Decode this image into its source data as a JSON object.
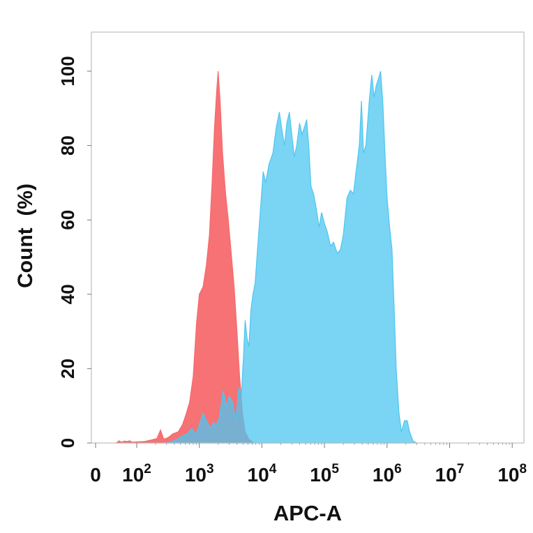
{
  "chart_data": {
    "type": "area",
    "title": "",
    "xlabel": "APC-A",
    "ylabel": "Count  (%)",
    "x_scale": "log",
    "xlim": [
      0,
      100000000
    ],
    "ylim": [
      0,
      110
    ],
    "grid": false,
    "legend": "none",
    "x_ticks": [
      {
        "value": 0,
        "label": "0",
        "exp": ""
      },
      {
        "value": 100,
        "label": "10",
        "exp": "2"
      },
      {
        "value": 1000,
        "label": "10",
        "exp": "3"
      },
      {
        "value": 10000,
        "label": "10",
        "exp": "4"
      },
      {
        "value": 100000,
        "label": "10",
        "exp": "5"
      },
      {
        "value": 1000000,
        "label": "10",
        "exp": "6"
      },
      {
        "value": 10000000,
        "label": "10",
        "exp": "7"
      },
      {
        "value": 100000000,
        "label": "10",
        "exp": "8"
      }
    ],
    "y_ticks": [
      0,
      20,
      40,
      60,
      80,
      100
    ],
    "series": [
      {
        "color": "#f56a6e",
        "fill_opacity": 0.95,
        "points": [
          [
            10,
            0
          ],
          [
            14,
            0.6
          ],
          [
            18,
            0.2
          ],
          [
            25,
            0.5
          ],
          [
            35,
            0.4
          ],
          [
            45,
            0.6
          ],
          [
            60,
            0.2
          ],
          [
            90,
            0.3
          ],
          [
            130,
            0.4
          ],
          [
            170,
            0.8
          ],
          [
            210,
            1.2
          ],
          [
            240,
            3.5
          ],
          [
            270,
            1.0
          ],
          [
            320,
            1.5
          ],
          [
            380,
            2.5
          ],
          [
            460,
            3.0
          ],
          [
            540,
            5.0
          ],
          [
            620,
            8.0
          ],
          [
            700,
            11.0
          ],
          [
            800,
            18.0
          ],
          [
            900,
            32.0
          ],
          [
            1000,
            40.0
          ],
          [
            1150,
            42.0
          ],
          [
            1300,
            48.0
          ],
          [
            1450,
            56.0
          ],
          [
            1600,
            70.0
          ],
          [
            1750,
            85.0
          ],
          [
            1900,
            95.0
          ],
          [
            2000,
            100.0
          ],
          [
            2150,
            92.0
          ],
          [
            2350,
            78.0
          ],
          [
            2600,
            68.0
          ],
          [
            2900,
            60.0
          ],
          [
            3200,
            52.0
          ],
          [
            3600,
            42.0
          ],
          [
            4000,
            30.0
          ],
          [
            4400,
            18.0
          ],
          [
            4900,
            8.0
          ],
          [
            5400,
            3.0
          ],
          [
            6200,
            1.0
          ],
          [
            7500,
            0
          ]
        ]
      },
      {
        "color": "#4dc6f0",
        "fill_opacity": 0.75,
        "points": [
          [
            300,
            0
          ],
          [
            420,
            0.8
          ],
          [
            520,
            1.8
          ],
          [
            640,
            2.5
          ],
          [
            760,
            4.0
          ],
          [
            880,
            2.2
          ],
          [
            1000,
            5.0
          ],
          [
            1150,
            8.0
          ],
          [
            1300,
            6.0
          ],
          [
            1500,
            4.0
          ],
          [
            1700,
            5.5
          ],
          [
            1900,
            5.0
          ],
          [
            2100,
            7.0
          ],
          [
            2400,
            14.0
          ],
          [
            2700,
            10.0
          ],
          [
            3000,
            12.5
          ],
          [
            3400,
            11.0
          ],
          [
            3800,
            6.0
          ],
          [
            4300,
            15.0
          ],
          [
            4700,
            13.0
          ],
          [
            5100,
            24.0
          ],
          [
            5400,
            33.0
          ],
          [
            5800,
            28.0
          ],
          [
            6200,
            26.0
          ],
          [
            6700,
            36.0
          ],
          [
            7200,
            40.0
          ],
          [
            7800,
            43.0
          ],
          [
            8500,
            52.0
          ],
          [
            9400,
            62.0
          ],
          [
            10500,
            73.0
          ],
          [
            11500,
            70.0
          ],
          [
            13000,
            75.0
          ],
          [
            15000,
            78.0
          ],
          [
            17000,
            85.0
          ],
          [
            19000,
            89.0
          ],
          [
            21000,
            84.0
          ],
          [
            23000,
            80.0
          ],
          [
            25000,
            86.0
          ],
          [
            27500,
            89.0
          ],
          [
            30000,
            83.0
          ],
          [
            33000,
            77.0
          ],
          [
            36000,
            80.0
          ],
          [
            40000,
            86.0
          ],
          [
            44000,
            83.0
          ],
          [
            48000,
            85.0
          ],
          [
            52000,
            87.0
          ],
          [
            56000,
            80.0
          ],
          [
            61000,
            69.0
          ],
          [
            67000,
            67.0
          ],
          [
            74000,
            63.0
          ],
          [
            82000,
            58.0
          ],
          [
            90000,
            62.0
          ],
          [
            100000,
            59.0
          ],
          [
            110000,
            57.0
          ],
          [
            125000,
            53.0
          ],
          [
            140000,
            54.0
          ],
          [
            160000,
            51.0
          ],
          [
            180000,
            52.0
          ],
          [
            200000,
            56.0
          ],
          [
            230000,
            66.0
          ],
          [
            260000,
            68.0
          ],
          [
            290000,
            67.0
          ],
          [
            320000,
            73.0
          ],
          [
            360000,
            80.0
          ],
          [
            390000,
            92.0
          ],
          [
            420000,
            78.0
          ],
          [
            460000,
            80.0
          ],
          [
            520000,
            92.0
          ],
          [
            570000,
            99.0
          ],
          [
            620000,
            93.0
          ],
          [
            670000,
            96.0
          ],
          [
            730000,
            98.0
          ],
          [
            790000,
            100.0
          ],
          [
            860000,
            91.0
          ],
          [
            930000,
            77.0
          ],
          [
            1000000,
            66.0
          ],
          [
            1100000,
            58.0
          ],
          [
            1200000,
            52.0
          ],
          [
            1300000,
            36.0
          ],
          [
            1400000,
            20.0
          ],
          [
            1550000,
            8.0
          ],
          [
            1700000,
            3.0
          ],
          [
            1900000,
            6.0
          ],
          [
            2100000,
            6.0
          ],
          [
            2300000,
            3.0
          ],
          [
            2600000,
            0.5
          ],
          [
            3000000,
            0
          ]
        ]
      }
    ]
  }
}
